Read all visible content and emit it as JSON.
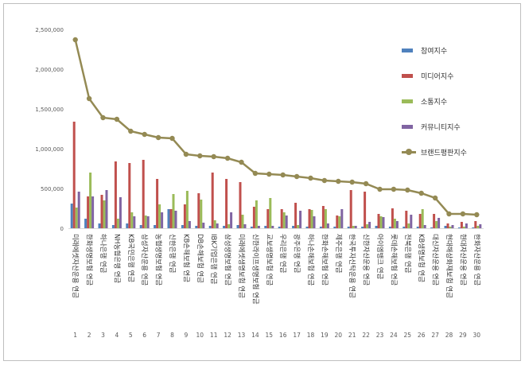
{
  "chart_data": {
    "type": "bar",
    "title": "",
    "xlabel": "",
    "ylabel": "",
    "ylim": [
      0,
      2500000
    ],
    "yticks": [
      "0",
      "500,000",
      "1,000,000",
      "1,500,000",
      "2,000,000",
      "2,500,000"
    ],
    "ytick_values": [
      0,
      500000,
      1000000,
      1500000,
      2000000,
      2500000
    ],
    "grid": false,
    "legend_position": "right",
    "categories": [
      "1",
      "2",
      "3",
      "4",
      "5",
      "6",
      "7",
      "8",
      "9",
      "10",
      "11",
      "12",
      "13",
      "14",
      "15",
      "16",
      "17",
      "18",
      "19",
      "20",
      "21",
      "22",
      "23",
      "24",
      "25",
      "26",
      "27",
      "28",
      "29",
      "30"
    ],
    "brand_names": [
      "미래에셋자산운용 연금",
      "한화생명보험 연금",
      "하나은행 연금",
      "NH농협은행 연금",
      "KB국민은행 연금",
      "삼성자산운용 연금",
      "농협생명보험 연금",
      "신한은행 연금",
      "KB손해보험 연금",
      "DB손해보험 연금",
      "IBK기업은행 연금",
      "삼성생명보험 연금",
      "미래에셋생명보험 연금",
      "신한라이프생명보험 연금",
      "교보생명보험 연금",
      "우리은행 연금",
      "광주은행 연금",
      "하나손해보험 연금",
      "한화손해보험 연금",
      "제주은행 연금",
      "한국투자신탁운용 연금",
      "신한자산운용 연금",
      "아이엠뱅크 연금",
      "롯데손해보험 연금",
      "전북은행 연금",
      "KB생명보험 연금",
      "대신자산운용 연금",
      "현대해상화재보험 연금",
      "현대자산운용 연금",
      "한화자산운용 연금"
    ],
    "series": [
      {
        "name": "참여지수",
        "type": "bar",
        "color": "#4f81bd",
        "values": [
          310000,
          120000,
          60000,
          40000,
          60000,
          40000,
          40000,
          240000,
          40000,
          30000,
          30000,
          30000,
          40000,
          20000,
          30000,
          20000,
          30000,
          20000,
          20000,
          20000,
          20000,
          20000,
          30000,
          20000,
          20000,
          20000,
          10000,
          30000,
          10000,
          10000
        ]
      },
      {
        "name": "미디어지수",
        "type": "bar",
        "color": "#c0504d",
        "values": [
          1340000,
          400000,
          420000,
          840000,
          820000,
          860000,
          620000,
          240000,
          300000,
          440000,
          700000,
          620000,
          580000,
          270000,
          240000,
          240000,
          320000,
          240000,
          280000,
          160000,
          480000,
          460000,
          180000,
          250000,
          220000,
          180000,
          180000,
          60000,
          80000,
          90000
        ]
      },
      {
        "name": "소통지수",
        "type": "bar",
        "color": "#9bbb59",
        "values": [
          260000,
          700000,
          350000,
          120000,
          200000,
          160000,
          300000,
          430000,
          470000,
          360000,
          100000,
          50000,
          170000,
          350000,
          380000,
          200000,
          40000,
          230000,
          240000,
          150000,
          30000,
          50000,
          150000,
          120000,
          60000,
          240000,
          90000,
          20000,
          20000,
          30000
        ]
      },
      {
        "name": "커뮤니티지수",
        "type": "bar",
        "color": "#8064a2",
        "values": [
          460000,
          400000,
          480000,
          390000,
          150000,
          150000,
          200000,
          220000,
          90000,
          70000,
          60000,
          200000,
          50000,
          30000,
          30000,
          160000,
          220000,
          150000,
          60000,
          240000,
          30000,
          80000,
          140000,
          90000,
          170000,
          40000,
          130000,
          40000,
          60000,
          50000
        ]
      },
      {
        "name": "브랜드평판지수",
        "type": "line",
        "color": "#948a54",
        "values": [
          2370000,
          1630000,
          1390000,
          1370000,
          1220000,
          1180000,
          1140000,
          1130000,
          930000,
          910000,
          900000,
          880000,
          830000,
          690000,
          680000,
          670000,
          650000,
          630000,
          600000,
          590000,
          580000,
          560000,
          490000,
          490000,
          480000,
          440000,
          380000,
          180000,
          180000,
          170000
        ]
      }
    ]
  }
}
